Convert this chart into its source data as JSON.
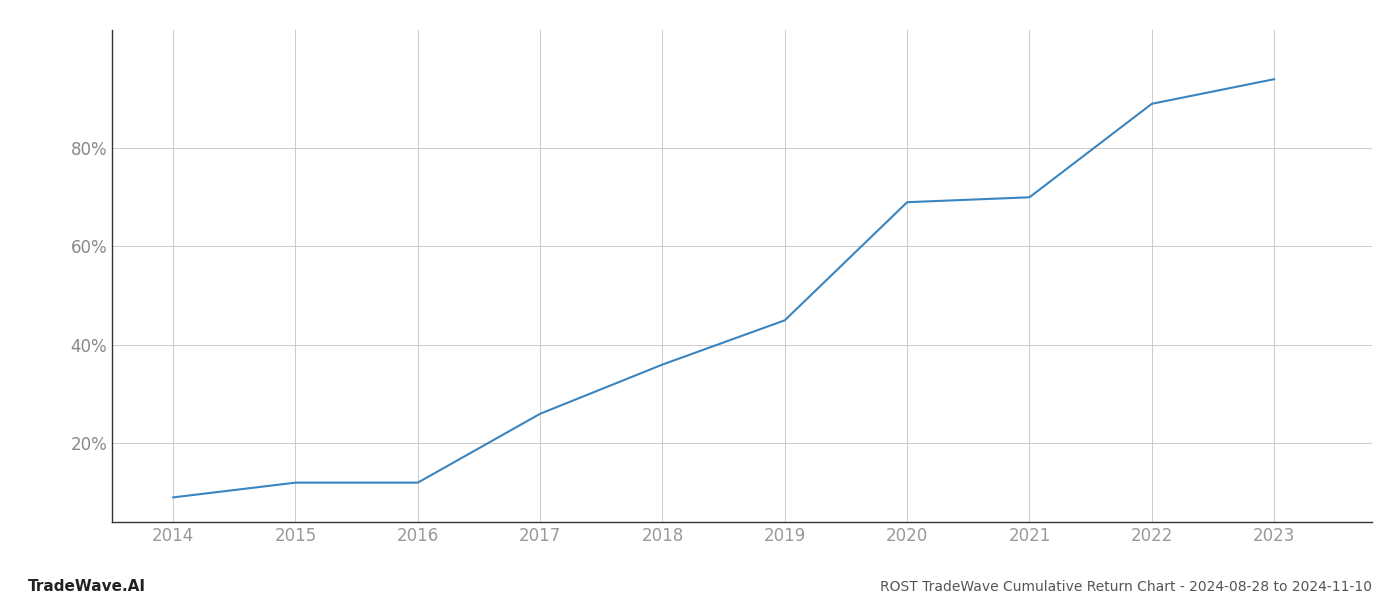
{
  "x_years": [
    2014,
    2015,
    2016,
    2017,
    2018,
    2019,
    2020,
    2021,
    2022,
    2023
  ],
  "y_values": [
    0.09,
    0.12,
    0.12,
    0.26,
    0.36,
    0.45,
    0.69,
    0.7,
    0.89,
    0.94
  ],
  "line_color": "#3a85c0",
  "line_width": 1.5,
  "background_color": "#ffffff",
  "grid_color": "#cccccc",
  "footer_left": "TradeWave.AI",
  "footer_right": "ROST TradeWave Cumulative Return Chart - 2024-08-28 to 2024-11-10",
  "yticks": [
    0.2,
    0.4,
    0.6,
    0.8
  ],
  "ytick_labels": [
    "20%",
    "40%",
    "60%",
    "80%"
  ],
  "xlim": [
    2013.5,
    2023.8
  ],
  "ylim": [
    0.04,
    1.04
  ]
}
